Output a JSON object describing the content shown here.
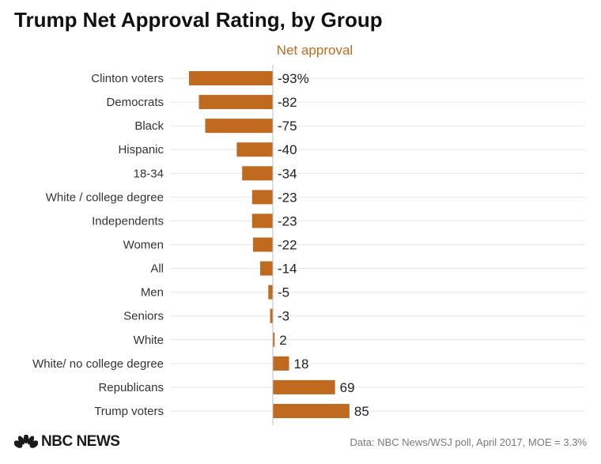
{
  "chart_data": {
    "type": "bar",
    "orientation": "horizontal",
    "title": "Trump Net Approval Rating, by Group",
    "xlabel": "Net approval",
    "categories": [
      "Clinton voters",
      "Democrats",
      "Black",
      "Hispanic",
      "18-34",
      "White / college degree",
      "Independents",
      "Women",
      "All",
      "Men",
      "Seniors",
      "White",
      "White/ no college degree",
      "Republicans",
      "Trump voters"
    ],
    "values": [
      -93,
      -82,
      -75,
      -40,
      -34,
      -23,
      -23,
      -22,
      -14,
      -5,
      -3,
      2,
      18,
      69,
      85
    ],
    "value_labels": [
      "-93%",
      "-82",
      "-75",
      "-40",
      "-34",
      "-23",
      "-23",
      "-22",
      "-14",
      "-5",
      "-3",
      "2",
      "18",
      "69",
      "85"
    ],
    "grid": true,
    "bar_color": "#c06a1f",
    "label_color": "#c06a1f"
  },
  "footer": {
    "brand": "NBC NEWS",
    "source": "Data: NBC News/WSJ poll, April 2017, MOE = 3.3%"
  }
}
